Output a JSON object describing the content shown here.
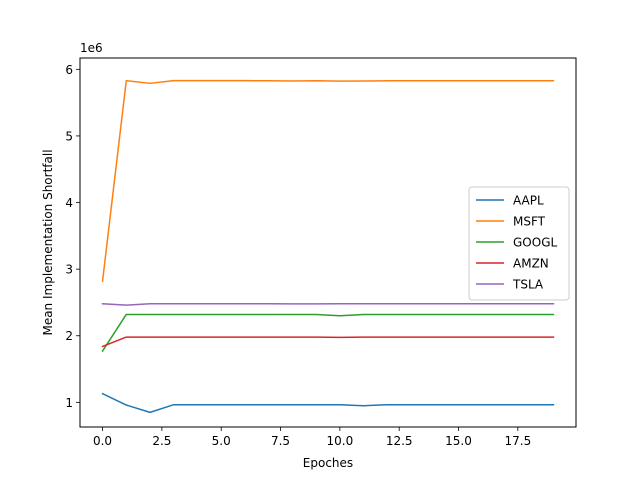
{
  "chart_data": {
    "type": "line",
    "xlabel": "Epoches",
    "ylabel": "Mean Implementation Shortfall",
    "offset_label": "1e6",
    "xlim": [
      -0.95,
      19.95
    ],
    "ylim": [
      0.63,
      6.17
    ],
    "x_scale_factor": 1,
    "y_scale_factor": 1000000,
    "xticks": [
      0,
      2.5,
      5,
      7.5,
      10,
      12.5,
      15,
      17.5
    ],
    "xtick_labels": [
      "0.0",
      "2.5",
      "5.0",
      "7.5",
      "10.0",
      "12.5",
      "15.0",
      "17.5"
    ],
    "yticks": [
      1,
      2,
      3,
      4,
      5,
      6
    ],
    "ytick_labels": [
      "1",
      "2",
      "3",
      "4",
      "5",
      "6"
    ],
    "grid": false,
    "legend_position": "center-right",
    "x": [
      0,
      1,
      2,
      3,
      4,
      5,
      6,
      7,
      8,
      9,
      10,
      11,
      12,
      13,
      14,
      15,
      16,
      17,
      18,
      19
    ],
    "series": [
      {
        "name": "AAPL",
        "color": "#1f77b4",
        "values": [
          1130000,
          960000,
          850000,
          965000,
          965000,
          965000,
          965000,
          965000,
          965000,
          965000,
          965000,
          950000,
          965000,
          965000,
          965000,
          965000,
          965000,
          965000,
          965000,
          965000
        ]
      },
      {
        "name": "MSFT",
        "color": "#ff7f0e",
        "values": [
          2820000,
          5830000,
          5790000,
          5830000,
          5830000,
          5830000,
          5830000,
          5828000,
          5825000,
          5828000,
          5822000,
          5825000,
          5828000,
          5828000,
          5828000,
          5828000,
          5828000,
          5828000,
          5828000,
          5828000
        ]
      },
      {
        "name": "GOOGL",
        "color": "#2ca02c",
        "values": [
          1770000,
          2320000,
          2320000,
          2320000,
          2320000,
          2320000,
          2320000,
          2320000,
          2320000,
          2320000,
          2300000,
          2320000,
          2320000,
          2320000,
          2320000,
          2320000,
          2320000,
          2320000,
          2320000,
          2320000
        ]
      },
      {
        "name": "AMZN",
        "color": "#d62728",
        "values": [
          1840000,
          1980000,
          1980000,
          1980000,
          1980000,
          1980000,
          1980000,
          1980000,
          1980000,
          1980000,
          1975000,
          1980000,
          1980000,
          1980000,
          1980000,
          1980000,
          1980000,
          1980000,
          1980000,
          1980000
        ]
      },
      {
        "name": "TSLA",
        "color": "#9467bd",
        "values": [
          2480000,
          2460000,
          2480000,
          2480000,
          2480000,
          2480000,
          2480000,
          2480000,
          2478000,
          2478000,
          2480000,
          2480000,
          2480000,
          2480000,
          2480000,
          2480000,
          2480000,
          2480000,
          2480000,
          2480000
        ]
      }
    ]
  }
}
